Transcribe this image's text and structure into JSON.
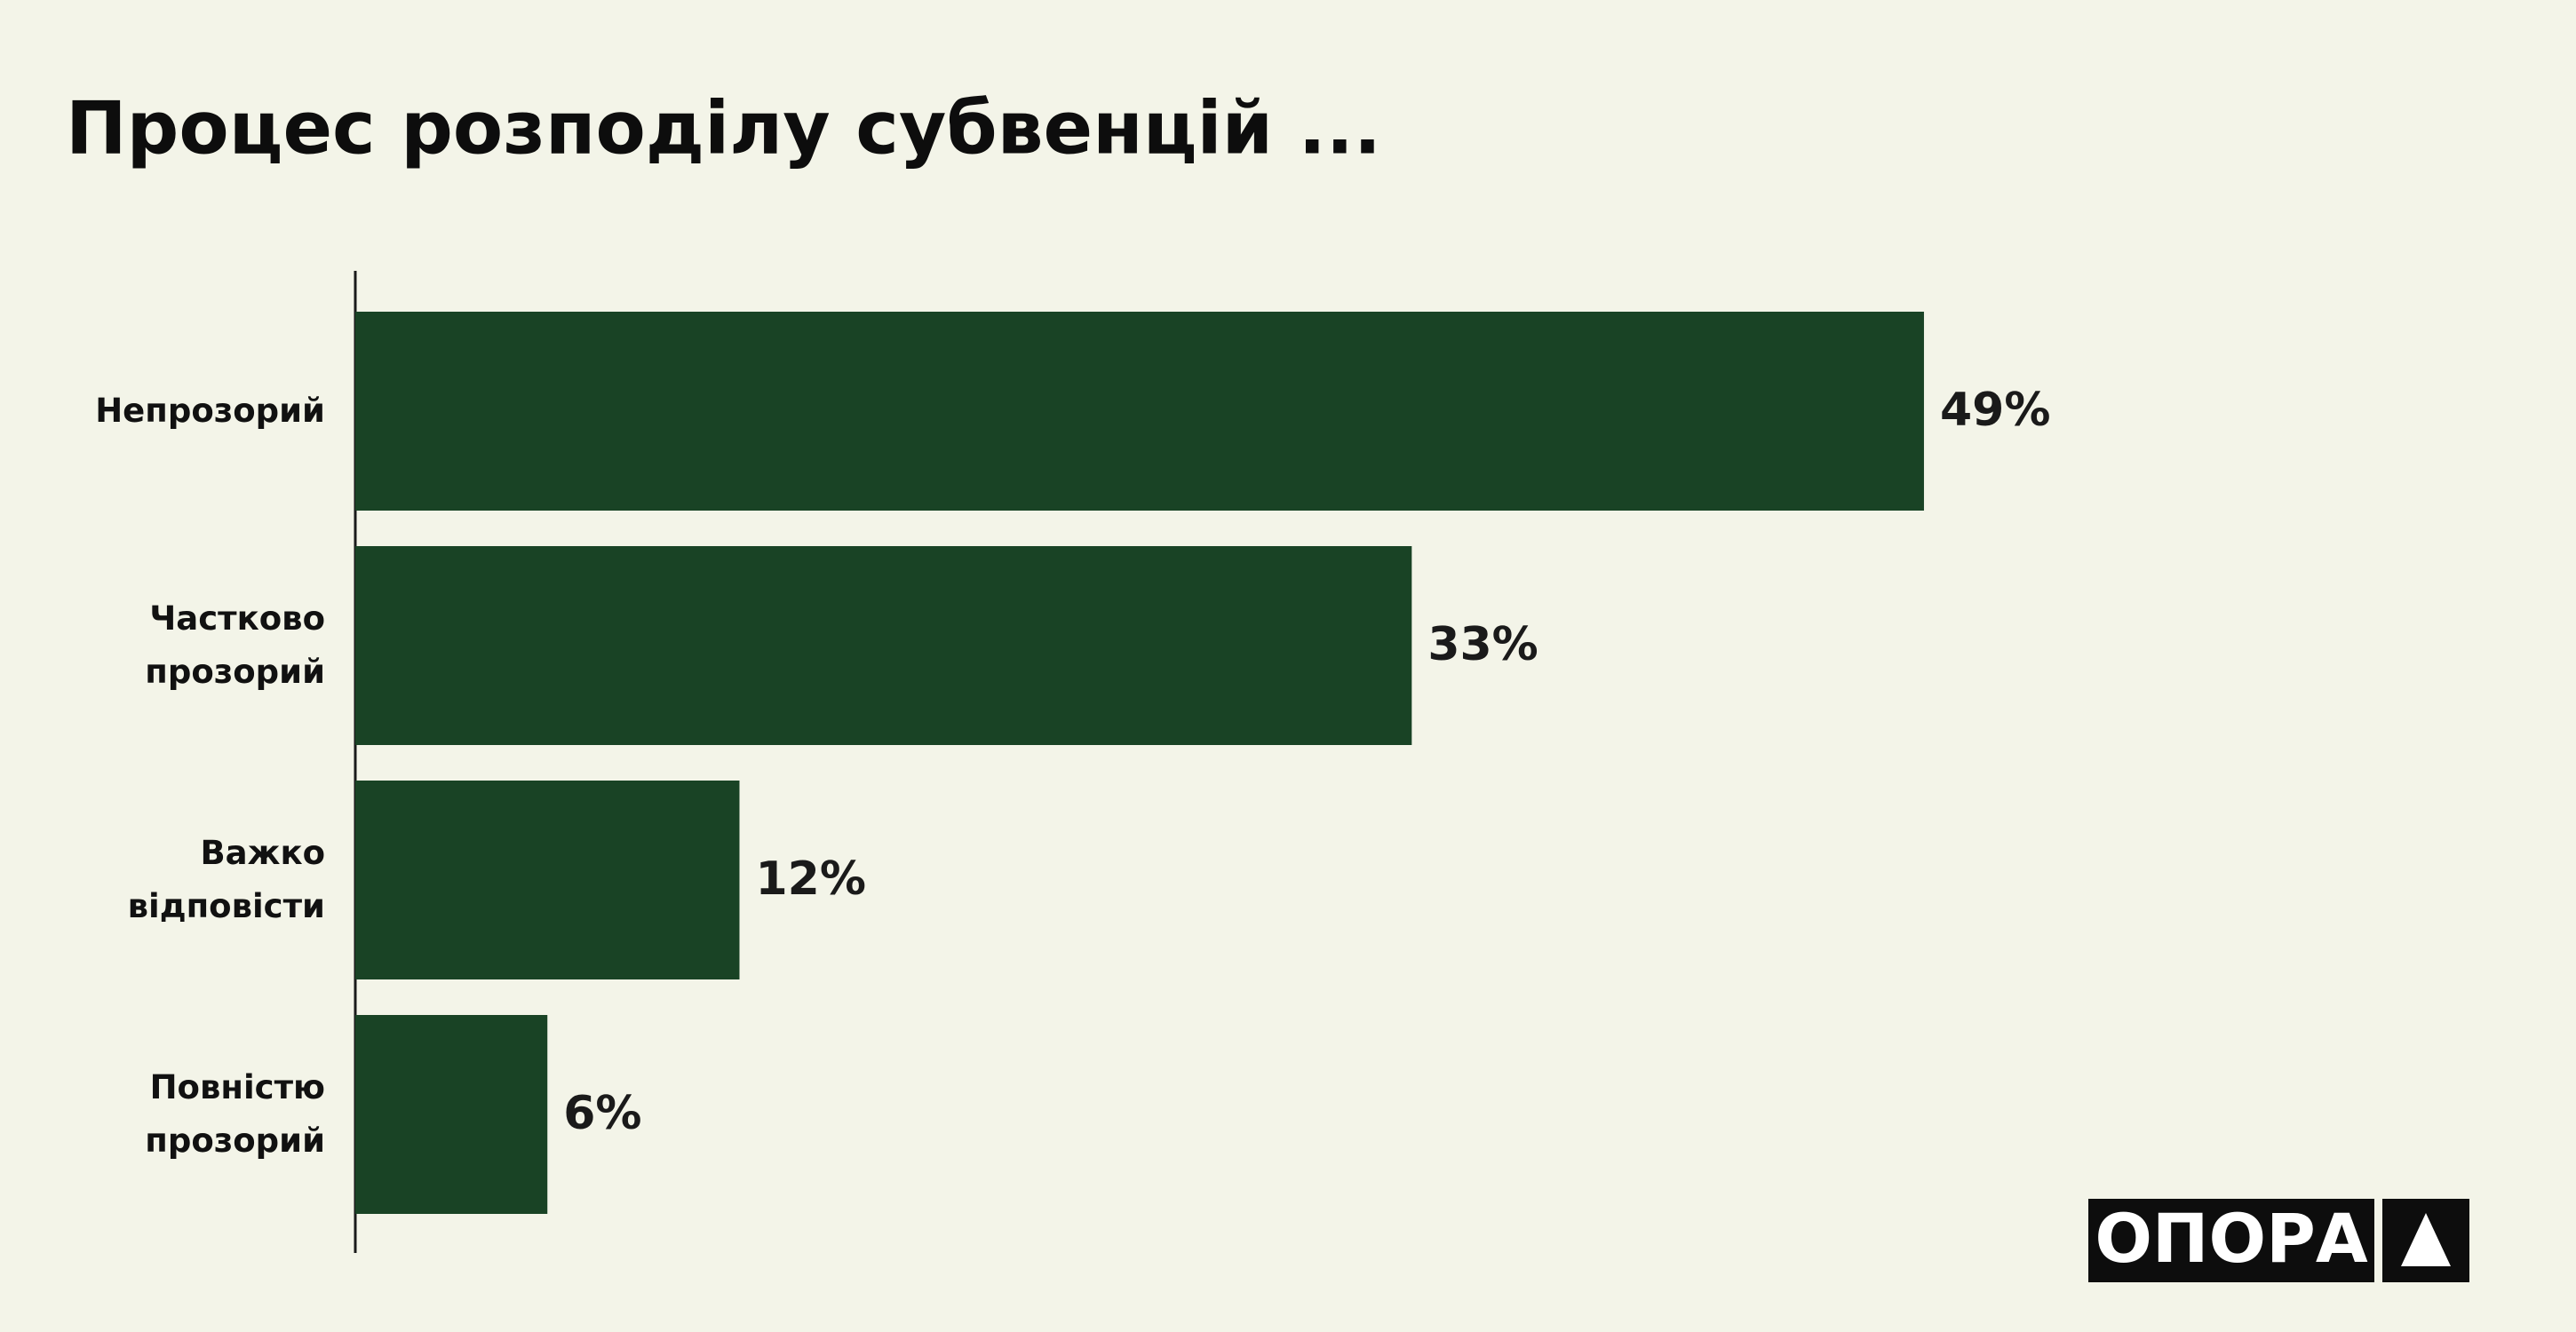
{
  "chart_data": {
    "type": "barh",
    "title": "Процес розподілу субвенцій ...",
    "categories": [
      "Непрозорий",
      "Частково прозорий",
      "Важко відповісти",
      "Повністю прозорий"
    ],
    "values": [
      49,
      33,
      12,
      6
    ],
    "value_labels": [
      "49%",
      "33%",
      "12%",
      "6%"
    ],
    "color": "#194325"
  },
  "logo": "ОПОРА"
}
